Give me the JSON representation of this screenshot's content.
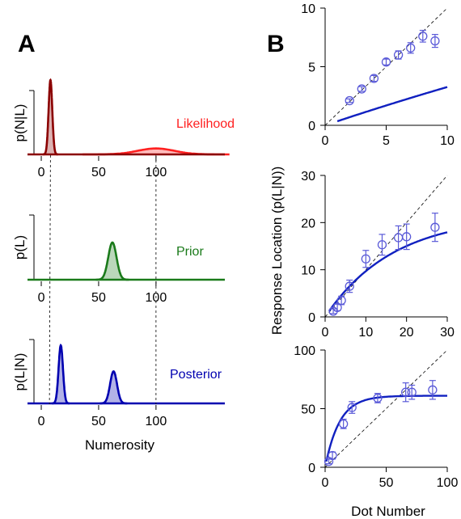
{
  "panels": {
    "a": "A",
    "b": "B"
  },
  "colors": {
    "likelihood_sharp": "#8b0000",
    "likelihood_wide": "#ff2020",
    "prior": "#1a7a1a",
    "posterior": "#0000b0",
    "fit": "#1020c0",
    "data": "#5a5ad8"
  },
  "chart_data": [
    {
      "type": "area",
      "ylabel": "p(N|L)",
      "label": "Likelihood",
      "x_ticks": [
        0,
        50,
        100
      ],
      "xlim": [
        -12,
        160
      ],
      "peaks": [
        {
          "mean": 8,
          "sd": 1.6,
          "height": 1.0
        },
        {
          "mean": 100,
          "sd": 16,
          "height": 0.08
        }
      ]
    },
    {
      "type": "area",
      "ylabel": "p(L)",
      "label": "Prior",
      "x_ticks": [
        0,
        50,
        100
      ],
      "xlim": [
        -12,
        160
      ],
      "peaks": [
        {
          "mean": 62,
          "sd": 3.6,
          "height": 0.5
        }
      ]
    },
    {
      "type": "area",
      "ylabel": "p(L|N)",
      "label": "Posterior",
      "xlabel": "Numerosity",
      "x_ticks": [
        0,
        50,
        100
      ],
      "xlim": [
        -12,
        160
      ],
      "peaks": [
        {
          "mean": 17,
          "sd": 1.9,
          "height": 0.78
        },
        {
          "mean": 63,
          "sd": 3.0,
          "height": 0.43
        }
      ]
    },
    {
      "type": "scatter",
      "xlim": [
        0,
        10
      ],
      "ylim": [
        0,
        10
      ],
      "x_ticks": [
        0,
        5,
        10
      ],
      "y_ticks": [
        0,
        5,
        10
      ],
      "x": [
        2,
        3,
        4,
        5,
        6,
        7,
        8,
        9
      ],
      "y": [
        2.1,
        3.1,
        4.0,
        5.4,
        6.0,
        6.6,
        7.6,
        7.2
      ],
      "err": [
        0.15,
        0.2,
        0.25,
        0.25,
        0.35,
        0.45,
        0.5,
        0.55
      ],
      "fit": {
        "kind": "saturating",
        "A": 25.0,
        "k": 0.014,
        "x_start": 1
      }
    },
    {
      "type": "scatter",
      "xlim": [
        0,
        30
      ],
      "ylim": [
        0,
        30
      ],
      "x_ticks": [
        0,
        10,
        20,
        30
      ],
      "y_ticks": [
        0,
        10,
        20,
        30
      ],
      "x": [
        2,
        3,
        4,
        6,
        10,
        14,
        18,
        20,
        27
      ],
      "y": [
        1.2,
        2.0,
        3.5,
        6.5,
        12.3,
        15.3,
        16.8,
        17.0,
        19.0
      ],
      "err": [
        0.5,
        0.7,
        0.9,
        1.3,
        1.8,
        2.2,
        2.5,
        2.7,
        3.0
      ],
      "fit": {
        "kind": "saturating",
        "A": 21.5,
        "k": 0.06,
        "x_start": 1
      }
    },
    {
      "type": "scatter",
      "xlim": [
        0,
        100
      ],
      "ylim": [
        0,
        100
      ],
      "x_ticks": [
        0,
        50,
        100
      ],
      "y_ticks": [
        0,
        50,
        100
      ],
      "x": [
        3,
        6,
        15,
        22,
        43,
        66,
        71,
        88
      ],
      "y": [
        5,
        10,
        37,
        51,
        59,
        64,
        64,
        66
      ],
      "err": [
        2,
        3,
        4,
        5,
        4,
        8,
        6,
        8
      ],
      "fit": {
        "kind": "saturating",
        "A": 61,
        "k": 0.085,
        "x_start": 1
      }
    }
  ],
  "axis_titles": {
    "right_x": "Dot Number",
    "right_y": "Response Location (p(L|N))"
  }
}
